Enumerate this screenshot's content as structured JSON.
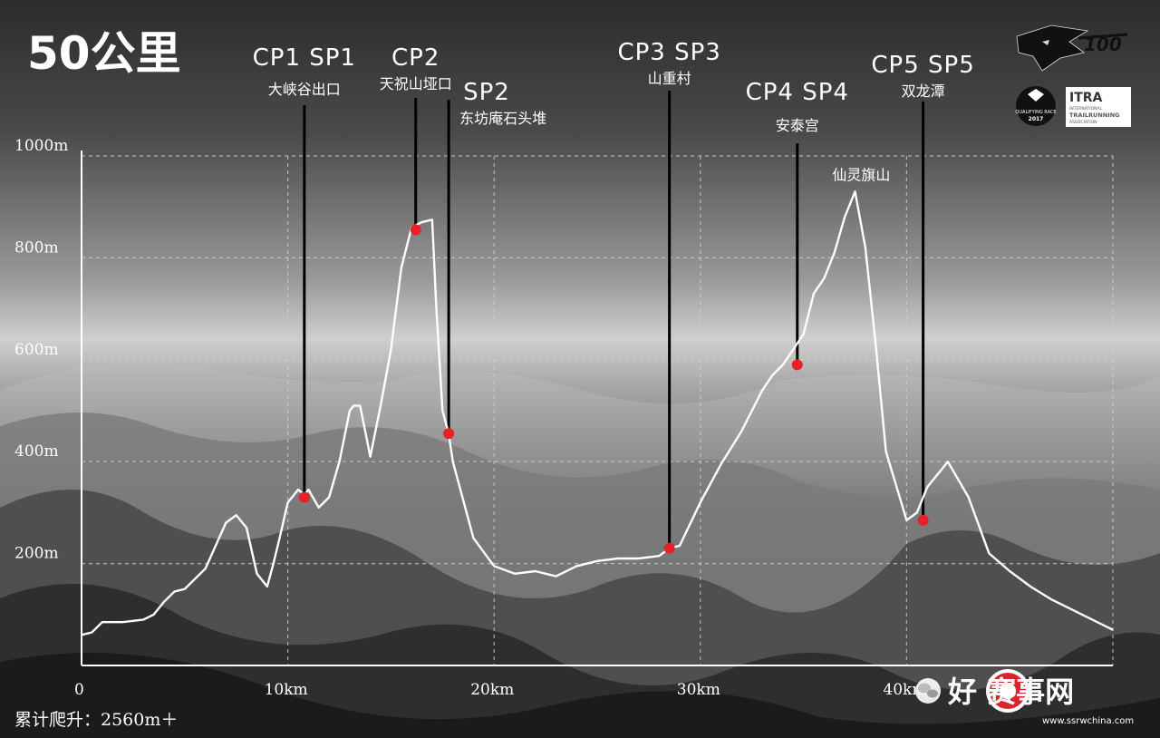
{
  "title": "50公里",
  "total_ascent": "累计爬升：2560m＋",
  "colors": {
    "profile": "#ffffff",
    "checkpoint": "#e8202a",
    "grid": "#cfcfcf",
    "watermark_red": "#d9232d"
  },
  "logos": [
    {
      "name": "wolf-logo",
      "text": "100"
    },
    {
      "name": "qualifying-race-badge",
      "text": "QUALIFYING RACE 2017"
    },
    {
      "name": "itra-logo",
      "text": "ITRA INTERNATIONAL TRAIL RUNNING ASSOCIATION"
    }
  ],
  "watermark": {
    "text": "好 赛事网",
    "site": "www.ssrwchina.com",
    "icon": "wechat-icon"
  },
  "chart_data": {
    "type": "line",
    "xlabel": "",
    "ylabel": "",
    "xlim": [
      0,
      50
    ],
    "ylim": [
      0,
      1000
    ],
    "x_ticks": [
      {
        "value": 0,
        "label": "0"
      },
      {
        "value": 10,
        "label": "10km"
      },
      {
        "value": 20,
        "label": "20km"
      },
      {
        "value": 30,
        "label": "30km"
      },
      {
        "value": 40,
        "label": "40km"
      }
    ],
    "y_ticks": [
      {
        "value": 200,
        "label": "200m"
      },
      {
        "value": 400,
        "label": "400m"
      },
      {
        "value": 600,
        "label": "600m"
      },
      {
        "value": 800,
        "label": "800m"
      },
      {
        "value": 1000,
        "label": "1000m"
      }
    ],
    "grid": true,
    "series": [
      {
        "x": [
          0,
          0.5,
          1,
          2,
          3,
          3.5,
          4,
          4.5,
          5,
          6,
          7,
          7.5,
          8,
          8.5,
          9,
          9.3,
          9.6,
          10,
          10.5,
          10.8,
          11,
          11.5,
          12,
          12.5,
          13,
          13.2,
          13.5,
          14,
          14.5,
          15,
          15.5,
          16,
          16.5,
          17,
          17.2,
          17.5,
          17.8,
          18,
          19,
          20,
          21,
          22,
          23,
          24,
          25,
          26,
          27,
          28,
          28.5,
          29,
          30,
          31,
          32,
          33,
          33.5,
          34,
          35,
          35.5,
          36,
          36.5,
          37,
          37.5,
          38,
          38.5,
          39,
          40,
          40.5,
          41,
          42,
          43,
          44,
          45,
          46,
          47,
          48,
          49,
          50
        ],
        "y": [
          60,
          65,
          85,
          85,
          90,
          100,
          125,
          145,
          150,
          190,
          280,
          295,
          270,
          180,
          155,
          200,
          250,
          320,
          345,
          335,
          345,
          310,
          330,
          400,
          500,
          510,
          510,
          410,
          510,
          620,
          780,
          860,
          870,
          875,
          700,
          500,
          455,
          400,
          250,
          195,
          180,
          185,
          175,
          195,
          205,
          210,
          210,
          215,
          230,
          235,
          320,
          395,
          460,
          540,
          570,
          590,
          650,
          730,
          760,
          810,
          880,
          930,
          820,
          630,
          420,
          285,
          300,
          350,
          400,
          330,
          220,
          185,
          155,
          130,
          110,
          90,
          70
        ]
      }
    ],
    "checkpoints": [
      {
        "label": "CP1 SP1",
        "name": "大峡谷出口",
        "x": 10.8,
        "y": 330
      },
      {
        "label": "CP2",
        "name": "天祝山垭口",
        "x": 16.2,
        "y": 855
      },
      {
        "label": "SP2",
        "name": "东坊庵石头堆",
        "x": 17.8,
        "y": 455
      },
      {
        "label": "CP3 SP3",
        "name": "山重村",
        "x": 28.5,
        "y": 230
      },
      {
        "label": "CP4 SP4",
        "name": "安泰宫",
        "x": 34.7,
        "y": 590
      },
      {
        "label": "CP5 SP5",
        "name": "双龙潭",
        "x": 40.8,
        "y": 285
      }
    ],
    "annotations": [
      {
        "text": "仙灵旗山",
        "x": 37.8,
        "y": 935
      }
    ]
  }
}
